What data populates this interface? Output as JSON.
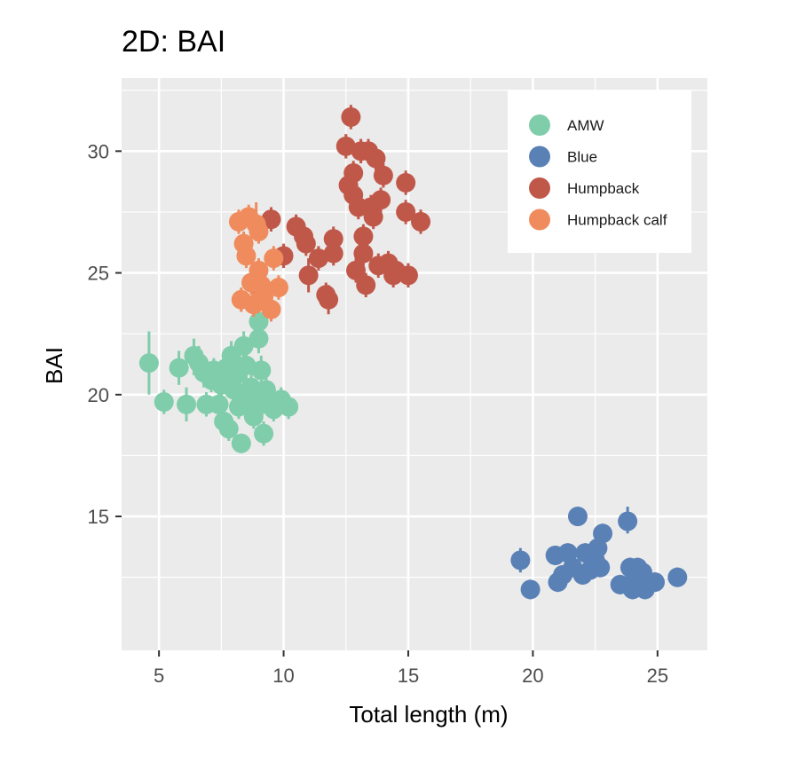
{
  "chart_data": {
    "type": "scatter",
    "title": "2D: BAI",
    "xlabel": "Total  length (m)",
    "ylabel": "BAI",
    "xlim": [
      3.5,
      27
    ],
    "ylim": [
      9.5,
      33
    ],
    "x_ticks": [
      5,
      10,
      15,
      20,
      25
    ],
    "y_ticks": [
      15,
      20,
      25,
      30
    ],
    "grid": true,
    "legend_position": "top-right",
    "series": [
      {
        "name": "AMW",
        "color": "#7fcdaa",
        "points": [
          {
            "x": 4.6,
            "y": 21.3,
            "lo": 20.0,
            "hi": 22.6
          },
          {
            "x": 5.2,
            "y": 19.7,
            "lo": 19.2,
            "hi": 20.2
          },
          {
            "x": 5.8,
            "y": 21.1,
            "lo": 20.4,
            "hi": 21.8
          },
          {
            "x": 6.1,
            "y": 19.6,
            "lo": 18.9,
            "hi": 20.3
          },
          {
            "x": 6.4,
            "y": 21.6,
            "lo": 20.8,
            "hi": 22.3
          },
          {
            "x": 6.6,
            "y": 21.3,
            "lo": 20.6,
            "hi": 22.0
          },
          {
            "x": 6.8,
            "y": 20.9,
            "lo": 20.3,
            "hi": 21.5
          },
          {
            "x": 6.9,
            "y": 19.6,
            "lo": 19.1,
            "hi": 20.1
          },
          {
            "x": 7.1,
            "y": 20.6,
            "lo": 20.1,
            "hi": 21.1
          },
          {
            "x": 7.2,
            "y": 21.0,
            "lo": 20.5,
            "hi": 21.5
          },
          {
            "x": 7.4,
            "y": 19.6,
            "lo": 19.1,
            "hi": 20.1
          },
          {
            "x": 7.5,
            "y": 20.4,
            "lo": 19.8,
            "hi": 21.0
          },
          {
            "x": 7.6,
            "y": 18.9,
            "lo": 18.4,
            "hi": 19.4
          },
          {
            "x": 7.7,
            "y": 21.1,
            "lo": 20.4,
            "hi": 21.8
          },
          {
            "x": 7.8,
            "y": 18.6,
            "lo": 18.1,
            "hi": 19.1
          },
          {
            "x": 7.9,
            "y": 21.6,
            "lo": 21.0,
            "hi": 22.2
          },
          {
            "x": 8.0,
            "y": 20.2,
            "lo": 19.6,
            "hi": 20.8
          },
          {
            "x": 8.1,
            "y": 20.8,
            "lo": 20.2,
            "hi": 21.4
          },
          {
            "x": 8.2,
            "y": 19.5,
            "lo": 19.0,
            "hi": 20.0
          },
          {
            "x": 8.3,
            "y": 18.0,
            "lo": 17.6,
            "hi": 18.4
          },
          {
            "x": 8.4,
            "y": 22.0,
            "lo": 21.4,
            "hi": 22.6
          },
          {
            "x": 8.5,
            "y": 21.2,
            "lo": 20.6,
            "hi": 21.8
          },
          {
            "x": 8.6,
            "y": 19.8,
            "lo": 19.2,
            "hi": 20.4
          },
          {
            "x": 8.7,
            "y": 20.3,
            "lo": 19.7,
            "hi": 20.9
          },
          {
            "x": 8.8,
            "y": 19.1,
            "lo": 18.6,
            "hi": 19.6
          },
          {
            "x": 8.9,
            "y": 20.0,
            "lo": 19.4,
            "hi": 20.6
          },
          {
            "x": 9.0,
            "y": 22.3,
            "lo": 21.7,
            "hi": 22.9
          },
          {
            "x": 9.0,
            "y": 23.0,
            "lo": 22.5,
            "hi": 23.5
          },
          {
            "x": 9.1,
            "y": 21.0,
            "lo": 20.4,
            "hi": 21.6
          },
          {
            "x": 9.1,
            "y": 19.6,
            "lo": 19.1,
            "hi": 20.1
          },
          {
            "x": 9.2,
            "y": 18.4,
            "lo": 17.9,
            "hi": 18.9
          },
          {
            "x": 9.3,
            "y": 20.2,
            "lo": 19.6,
            "hi": 20.8
          },
          {
            "x": 9.5,
            "y": 19.7,
            "lo": 19.1,
            "hi": 20.3
          },
          {
            "x": 9.6,
            "y": 19.4,
            "lo": 18.9,
            "hi": 19.9
          },
          {
            "x": 9.9,
            "y": 19.8,
            "lo": 19.3,
            "hi": 20.3
          },
          {
            "x": 10.2,
            "y": 19.5,
            "lo": 19.0,
            "hi": 20.0
          }
        ]
      },
      {
        "name": "Blue",
        "color": "#5a81b6",
        "points": [
          {
            "x": 19.5,
            "y": 13.2,
            "lo": 12.7,
            "hi": 13.7
          },
          {
            "x": 19.9,
            "y": 12.0,
            "lo": 11.6,
            "hi": 12.4
          },
          {
            "x": 20.9,
            "y": 13.4,
            "lo": 13.0,
            "hi": 13.8
          },
          {
            "x": 21.0,
            "y": 12.3,
            "lo": 11.9,
            "hi": 12.7
          },
          {
            "x": 21.2,
            "y": 12.6,
            "lo": 12.2,
            "hi": 13.0
          },
          {
            "x": 21.4,
            "y": 13.5,
            "lo": 13.1,
            "hi": 13.9
          },
          {
            "x": 21.6,
            "y": 12.9,
            "lo": 12.5,
            "hi": 13.3
          },
          {
            "x": 21.8,
            "y": 15.0,
            "lo": 14.6,
            "hi": 15.4
          },
          {
            "x": 22.0,
            "y": 12.6,
            "lo": 12.2,
            "hi": 13.0
          },
          {
            "x": 22.1,
            "y": 13.5,
            "lo": 13.1,
            "hi": 13.9
          },
          {
            "x": 22.3,
            "y": 12.8,
            "lo": 12.4,
            "hi": 13.2
          },
          {
            "x": 22.5,
            "y": 13.2,
            "lo": 12.8,
            "hi": 13.6
          },
          {
            "x": 22.6,
            "y": 13.7,
            "lo": 13.3,
            "hi": 14.1
          },
          {
            "x": 22.7,
            "y": 12.9,
            "lo": 12.5,
            "hi": 13.3
          },
          {
            "x": 22.8,
            "y": 14.3,
            "lo": 13.9,
            "hi": 14.7
          },
          {
            "x": 23.5,
            "y": 12.2,
            "lo": 11.8,
            "hi": 12.6
          },
          {
            "x": 23.8,
            "y": 14.8,
            "lo": 14.3,
            "hi": 15.4
          },
          {
            "x": 23.9,
            "y": 12.9,
            "lo": 12.5,
            "hi": 13.3
          },
          {
            "x": 24.0,
            "y": 12.0,
            "lo": 11.6,
            "hi": 12.4
          },
          {
            "x": 24.1,
            "y": 12.5,
            "lo": 12.1,
            "hi": 12.9
          },
          {
            "x": 24.2,
            "y": 12.9,
            "lo": 12.5,
            "hi": 13.3
          },
          {
            "x": 24.3,
            "y": 12.1,
            "lo": 11.7,
            "hi": 12.5
          },
          {
            "x": 24.4,
            "y": 12.7,
            "lo": 12.3,
            "hi": 13.1
          },
          {
            "x": 24.5,
            "y": 12.0,
            "lo": 11.6,
            "hi": 12.4
          },
          {
            "x": 24.9,
            "y": 12.3,
            "lo": 11.9,
            "hi": 12.7
          },
          {
            "x": 25.8,
            "y": 12.5,
            "lo": 12.1,
            "hi": 12.9
          }
        ]
      },
      {
        "name": "Humpback",
        "color": "#c0584a",
        "points": [
          {
            "x": 9.0,
            "y": 24.5,
            "lo": 24.0,
            "hi": 25.0
          },
          {
            "x": 9.5,
            "y": 27.2,
            "lo": 26.7,
            "hi": 27.7
          },
          {
            "x": 10.0,
            "y": 25.7,
            "lo": 25.2,
            "hi": 26.2
          },
          {
            "x": 10.5,
            "y": 26.9,
            "lo": 26.4,
            "hi": 27.4
          },
          {
            "x": 10.8,
            "y": 26.5,
            "lo": 26.0,
            "hi": 27.0
          },
          {
            "x": 10.9,
            "y": 26.2,
            "lo": 25.7,
            "hi": 26.7
          },
          {
            "x": 11.0,
            "y": 24.9,
            "lo": 24.2,
            "hi": 25.6
          },
          {
            "x": 11.4,
            "y": 25.6,
            "lo": 25.1,
            "hi": 26.1
          },
          {
            "x": 11.7,
            "y": 24.1,
            "lo": 23.6,
            "hi": 24.6
          },
          {
            "x": 11.8,
            "y": 23.9,
            "lo": 23.3,
            "hi": 24.5
          },
          {
            "x": 12.0,
            "y": 26.4,
            "lo": 25.9,
            "hi": 26.9
          },
          {
            "x": 12.0,
            "y": 25.8,
            "lo": 25.3,
            "hi": 26.3
          },
          {
            "x": 12.5,
            "y": 30.2,
            "lo": 29.7,
            "hi": 30.7
          },
          {
            "x": 12.6,
            "y": 28.6,
            "lo": 28.1,
            "hi": 29.1
          },
          {
            "x": 12.7,
            "y": 31.4,
            "lo": 30.9,
            "hi": 31.9
          },
          {
            "x": 12.8,
            "y": 28.2,
            "lo": 27.7,
            "hi": 28.7
          },
          {
            "x": 12.8,
            "y": 29.1,
            "lo": 28.6,
            "hi": 29.6
          },
          {
            "x": 12.9,
            "y": 25.1,
            "lo": 24.6,
            "hi": 25.6
          },
          {
            "x": 13.0,
            "y": 27.7,
            "lo": 27.2,
            "hi": 28.2
          },
          {
            "x": 13.1,
            "y": 30.0,
            "lo": 29.5,
            "hi": 30.5
          },
          {
            "x": 13.2,
            "y": 25.8,
            "lo": 25.3,
            "hi": 26.3
          },
          {
            "x": 13.2,
            "y": 26.5,
            "lo": 26.0,
            "hi": 27.0
          },
          {
            "x": 13.3,
            "y": 24.5,
            "lo": 24.0,
            "hi": 25.0
          },
          {
            "x": 13.4,
            "y": 30.0,
            "lo": 29.5,
            "hi": 30.5
          },
          {
            "x": 13.5,
            "y": 27.7,
            "lo": 27.2,
            "hi": 28.2
          },
          {
            "x": 13.6,
            "y": 27.3,
            "lo": 26.8,
            "hi": 27.8
          },
          {
            "x": 13.7,
            "y": 29.7,
            "lo": 29.2,
            "hi": 30.2
          },
          {
            "x": 13.8,
            "y": 25.3,
            "lo": 24.8,
            "hi": 25.8
          },
          {
            "x": 13.9,
            "y": 28.0,
            "lo": 27.5,
            "hi": 28.5
          },
          {
            "x": 14.0,
            "y": 29.0,
            "lo": 28.5,
            "hi": 29.5
          },
          {
            "x": 14.2,
            "y": 25.4,
            "lo": 24.9,
            "hi": 25.9
          },
          {
            "x": 14.4,
            "y": 24.9,
            "lo": 24.4,
            "hi": 25.4
          },
          {
            "x": 14.5,
            "y": 25.1,
            "lo": 24.6,
            "hi": 25.6
          },
          {
            "x": 14.9,
            "y": 28.7,
            "lo": 28.2,
            "hi": 29.2
          },
          {
            "x": 14.9,
            "y": 27.5,
            "lo": 27.0,
            "hi": 28.0
          },
          {
            "x": 15.0,
            "y": 24.9,
            "lo": 24.4,
            "hi": 25.4
          },
          {
            "x": 15.5,
            "y": 27.1,
            "lo": 26.6,
            "hi": 27.6
          }
        ]
      },
      {
        "name": "Humpback calf",
        "color": "#ef8b5c",
        "points": [
          {
            "x": 8.2,
            "y": 27.1,
            "lo": 26.6,
            "hi": 27.6
          },
          {
            "x": 8.3,
            "y": 23.9,
            "lo": 23.4,
            "hi": 24.4
          },
          {
            "x": 8.4,
            "y": 26.2,
            "lo": 25.7,
            "hi": 26.7
          },
          {
            "x": 8.5,
            "y": 25.7,
            "lo": 25.2,
            "hi": 26.2
          },
          {
            "x": 8.6,
            "y": 27.3,
            "lo": 26.8,
            "hi": 27.8
          },
          {
            "x": 8.7,
            "y": 24.6,
            "lo": 24.1,
            "hi": 25.1
          },
          {
            "x": 8.8,
            "y": 23.7,
            "lo": 23.2,
            "hi": 24.2
          },
          {
            "x": 8.9,
            "y": 27.0,
            "lo": 26.3,
            "hi": 27.9
          },
          {
            "x": 9.0,
            "y": 26.7,
            "lo": 26.2,
            "hi": 27.2
          },
          {
            "x": 9.0,
            "y": 25.1,
            "lo": 24.6,
            "hi": 25.6
          },
          {
            "x": 9.1,
            "y": 24.5,
            "lo": 24.0,
            "hi": 25.0
          },
          {
            "x": 9.2,
            "y": 24.0,
            "lo": 23.5,
            "hi": 24.5
          },
          {
            "x": 9.5,
            "y": 23.5,
            "lo": 23.0,
            "hi": 24.0
          },
          {
            "x": 9.6,
            "y": 25.6,
            "lo": 25.1,
            "hi": 26.1
          },
          {
            "x": 9.8,
            "y": 24.4,
            "lo": 23.9,
            "hi": 24.9
          }
        ]
      }
    ]
  }
}
